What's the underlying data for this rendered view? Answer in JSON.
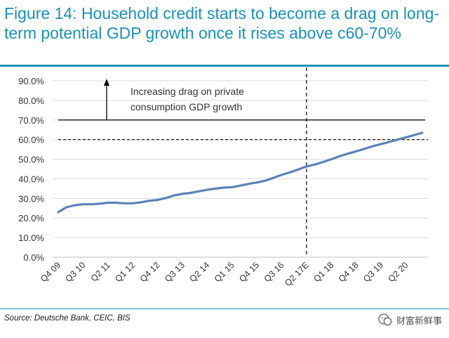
{
  "figure": {
    "title": "Figure 14: Household credit starts to become a drag on long-term potential GDP growth once it rises above c60-70%",
    "source": "Source: Deutsche Bank, CEIC, BIS",
    "watermark_text": "财富新鲜事",
    "accent_color": "#1a90b8"
  },
  "chart_data": {
    "type": "line",
    "title": "",
    "xlabel": "",
    "ylabel": "",
    "ylim": [
      0,
      90
    ],
    "y_ticks": [
      "0.0%",
      "10.0%",
      "20.0%",
      "30.0%",
      "40.0%",
      "50.0%",
      "60.0%",
      "70.0%",
      "80.0%",
      "90.0%"
    ],
    "x_tick_labels": [
      "Q4 09",
      "Q3 10",
      "Q2 11",
      "Q1 12",
      "Q4 12",
      "Q3 13",
      "Q2 14",
      "Q1 15",
      "Q4 15",
      "Q3 16",
      "Q2 17E",
      "Q1 18",
      "Q4 18",
      "Q3 19",
      "Q2 20"
    ],
    "grid": "horizontal",
    "series_color": "#5b82b8",
    "x": [
      "Q4 09",
      "Q1 10",
      "Q2 10",
      "Q3 10",
      "Q4 10",
      "Q1 11",
      "Q2 11",
      "Q3 11",
      "Q4 11",
      "Q1 12",
      "Q2 12",
      "Q3 12",
      "Q4 12",
      "Q1 13",
      "Q2 13",
      "Q3 13",
      "Q4 13",
      "Q1 14",
      "Q2 14",
      "Q3 14",
      "Q4 14",
      "Q1 15",
      "Q2 15",
      "Q3 15",
      "Q4 15",
      "Q1 16",
      "Q2 16",
      "Q3 16",
      "Q4 16",
      "Q1 17",
      "Q2 17E",
      "Q3 17E",
      "Q4 17E",
      "Q1 18",
      "Q2 18",
      "Q3 18",
      "Q4 18",
      "Q1 19",
      "Q2 19",
      "Q3 19",
      "Q4 19",
      "Q1 20",
      "Q2 20",
      "Q3 20",
      "Q4 20"
    ],
    "series": [
      {
        "values": [
          23.0,
          25.5,
          26.5,
          27.0,
          27.0,
          27.3,
          27.8,
          27.8,
          27.5,
          27.5,
          28.0,
          28.8,
          29.2,
          30.2,
          31.5,
          32.3,
          32.8,
          33.6,
          34.4,
          35.0,
          35.5,
          35.7,
          36.5,
          37.4,
          38.1,
          39.0,
          40.5,
          42.0,
          43.3,
          44.7,
          46.3,
          47.3,
          48.6,
          50.0,
          51.5,
          52.8,
          54.0,
          55.3,
          56.6,
          57.7,
          58.8,
          60.0,
          61.1,
          62.3,
          63.5
        ]
      }
    ],
    "annotations": {
      "drag_text_line1": "Increasing drag on private",
      "drag_text_line2": "consumption GDP growth",
      "solid_threshold_y": 70,
      "dashed_threshold_y": 60,
      "forecast_start_x": "Q2 17E",
      "arrow_direction": "up"
    }
  }
}
